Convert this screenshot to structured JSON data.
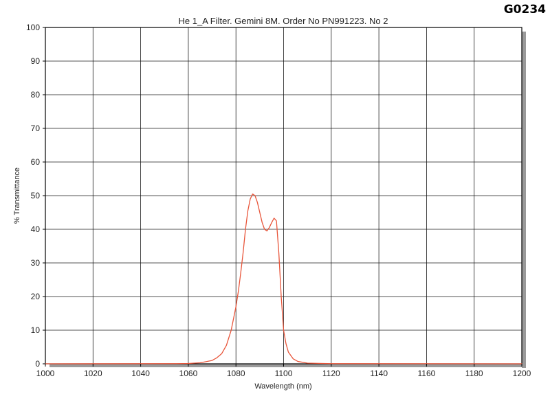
{
  "corner_tag": "G0234",
  "chart_data": {
    "type": "line",
    "title": "He 1_A Filter. Gemini 8M. Order No PN991223. No 2",
    "xlabel": "Wavelength (nm)",
    "ylabel": "% Transmittance",
    "xlim": [
      1000,
      1200
    ],
    "ylim": [
      0,
      100
    ],
    "xticks": [
      1000,
      1020,
      1040,
      1060,
      1080,
      1100,
      1120,
      1140,
      1160,
      1180,
      1200
    ],
    "yticks": [
      0,
      10,
      20,
      30,
      40,
      50,
      60,
      70,
      80,
      90,
      100
    ],
    "grid": true,
    "line_color": "#e8553a",
    "series": [
      {
        "x": [
          1000,
          1055,
          1060,
          1065,
          1070,
          1072,
          1074,
          1076,
          1078,
          1080,
          1081,
          1082,
          1083,
          1084,
          1085,
          1086,
          1087,
          1088,
          1089,
          1090,
          1091,
          1092,
          1093,
          1094,
          1095,
          1096,
          1097,
          1098,
          1099,
          1100,
          1101,
          1102,
          1104,
          1106,
          1110,
          1120,
          1200
        ],
        "values": [
          0,
          0.05,
          0.1,
          0.3,
          1.0,
          1.8,
          3.0,
          5.5,
          10.0,
          17.0,
          21.5,
          27.0,
          33.0,
          40.0,
          45.5,
          49.0,
          50.5,
          50.0,
          48.0,
          45.0,
          42.0,
          40.0,
          39.5,
          40.5,
          42.0,
          43.3,
          42.5,
          33.0,
          20.0,
          10.0,
          6.0,
          3.5,
          1.5,
          0.7,
          0.2,
          0.05,
          0
        ]
      }
    ]
  }
}
